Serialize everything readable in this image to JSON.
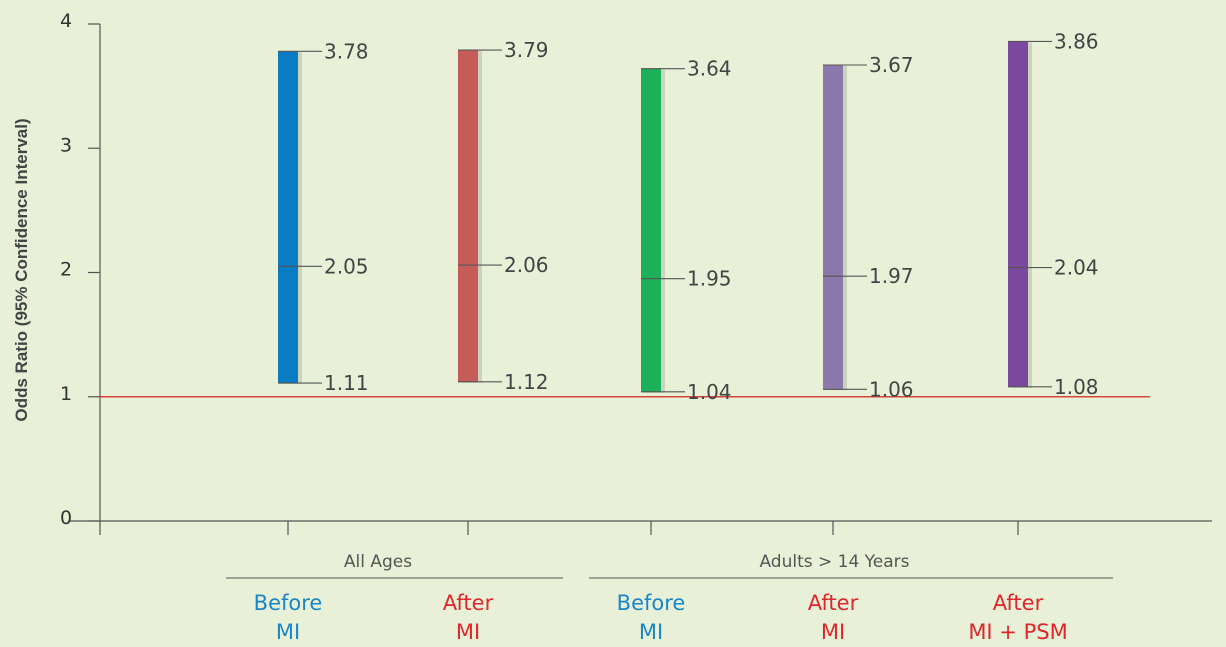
{
  "chart_data": {
    "type": "error_bar",
    "ylabel": "Odds Ratio (95% Confidence Interval)",
    "ylim": [
      0,
      4
    ],
    "yticks": [
      "0",
      "1",
      "2",
      "3",
      "4"
    ],
    "reference_line": {
      "y": 1,
      "color": "#d9443a"
    },
    "groups": [
      {
        "label": "All Ages",
        "categories": [
          0,
          1
        ]
      },
      {
        "label": "Adults > 14 Years",
        "categories": [
          2,
          3,
          4
        ]
      }
    ],
    "categories": [
      {
        "line1": "Before",
        "line2": "MI",
        "color": "#1a86c8"
      },
      {
        "line1": "After",
        "line2": "MI",
        "color": "#e0262b"
      },
      {
        "line1": "Before",
        "line2": "MI",
        "color": "#1a86c8"
      },
      {
        "line1": "After",
        "line2": "MI",
        "color": "#e0262b"
      },
      {
        "line1": "After",
        "line2": "MI + PSM",
        "color": "#e0262b"
      }
    ],
    "series": [
      {
        "lower": 1.11,
        "estimate": 2.05,
        "upper": 3.78,
        "lower_label": "1.11",
        "estimate_label": "2.05",
        "upper_label": "3.78",
        "color": "#0a7cc4"
      },
      {
        "lower": 1.12,
        "estimate": 2.06,
        "upper": 3.79,
        "lower_label": "1.12",
        "estimate_label": "2.06",
        "upper_label": "3.79",
        "color": "#c65c57"
      },
      {
        "lower": 1.04,
        "estimate": 1.95,
        "upper": 3.64,
        "lower_label": "1.04",
        "estimate_label": "1.95",
        "upper_label": "3.64",
        "color": "#1db05a"
      },
      {
        "lower": 1.06,
        "estimate": 1.97,
        "upper": 3.67,
        "lower_label": "1.06",
        "estimate_label": "1.97",
        "upper_label": "3.67",
        "color": "#8b78ac"
      },
      {
        "lower": 1.08,
        "estimate": 2.04,
        "upper": 3.86,
        "lower_label": "1.08",
        "estimate_label": "2.04",
        "upper_label": "3.86",
        "color": "#7b48a0"
      }
    ]
  }
}
